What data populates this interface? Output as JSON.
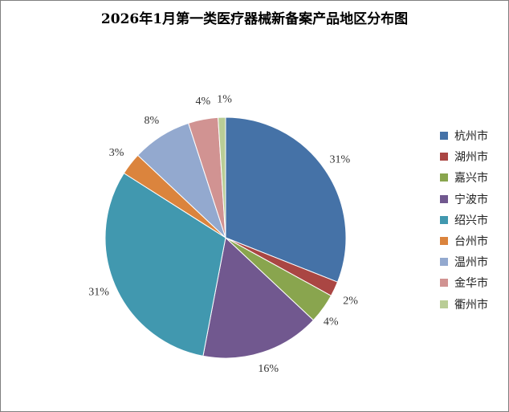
{
  "chart_data": {
    "type": "pie",
    "title": "2026年1月第一类医疗器械新备案产品地区分布图",
    "categories": [
      "杭州市",
      "湖州市",
      "嘉兴市",
      "宁波市",
      "绍兴市",
      "台州市",
      "温州市",
      "金华市",
      "衢州市"
    ],
    "values": [
      31,
      2,
      4,
      16,
      31,
      3,
      8,
      4,
      1
    ],
    "labels": [
      "31%",
      "2%",
      "4%",
      "16%",
      "31%",
      "3%",
      "8%",
      "4%",
      "1%"
    ],
    "colors": [
      "#4572A7",
      "#AA4643",
      "#89A54E",
      "#71588F",
      "#4198AF",
      "#DB843D",
      "#93A9CF",
      "#D19392",
      "#B9CD96"
    ],
    "legend_position": "right"
  }
}
